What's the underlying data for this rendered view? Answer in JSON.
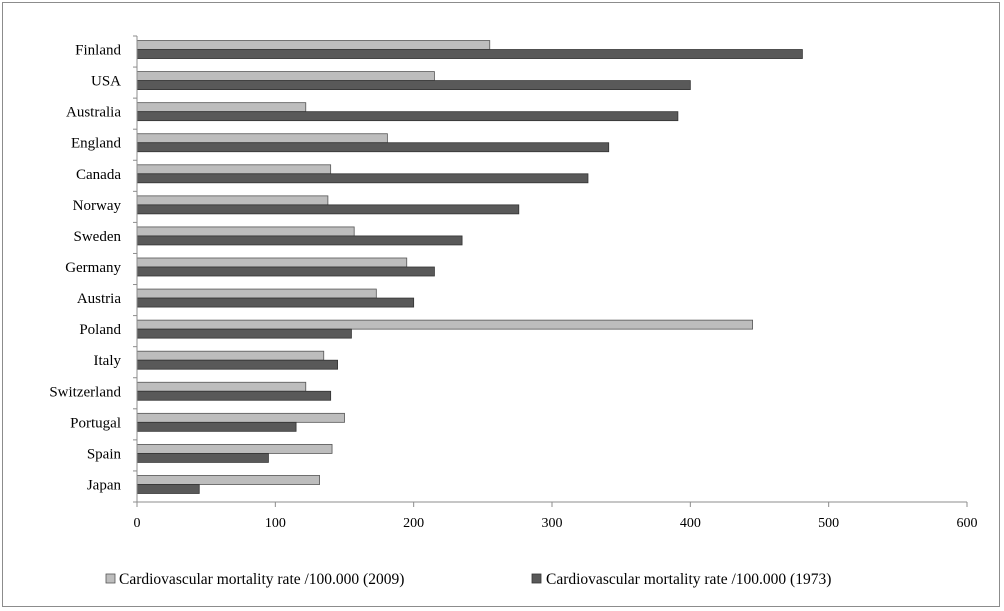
{
  "chart_data": {
    "type": "bar",
    "orientation": "horizontal",
    "title": "",
    "xlabel": "",
    "ylabel": "",
    "xlim": [
      0,
      600
    ],
    "xticks": [
      0,
      100,
      200,
      300,
      400,
      500,
      600
    ],
    "grid": false,
    "legend_position": "bottom",
    "categories": [
      "Finland",
      "USA",
      "Australia",
      "England",
      "Canada",
      "Norway",
      "Sweden",
      "Germany",
      "Austria",
      "Poland",
      "Italy",
      "Switzerland",
      "Portugal",
      "Spain",
      "Japan"
    ],
    "series": [
      {
        "name": "Cardiovascular mortality rate /100.000 (2009)",
        "color": "#bdbdbd",
        "values": [
          255,
          215,
          122,
          181,
          140,
          138,
          157,
          195,
          173,
          445,
          135,
          122,
          150,
          141,
          132
        ]
      },
      {
        "name": "Cardiovascular mortality rate /100.000 (1973)",
        "color": "#595959",
        "values": [
          481,
          400,
          391,
          341,
          326,
          276,
          235,
          215,
          200,
          155,
          145,
          140,
          115,
          95,
          45
        ]
      }
    ]
  }
}
